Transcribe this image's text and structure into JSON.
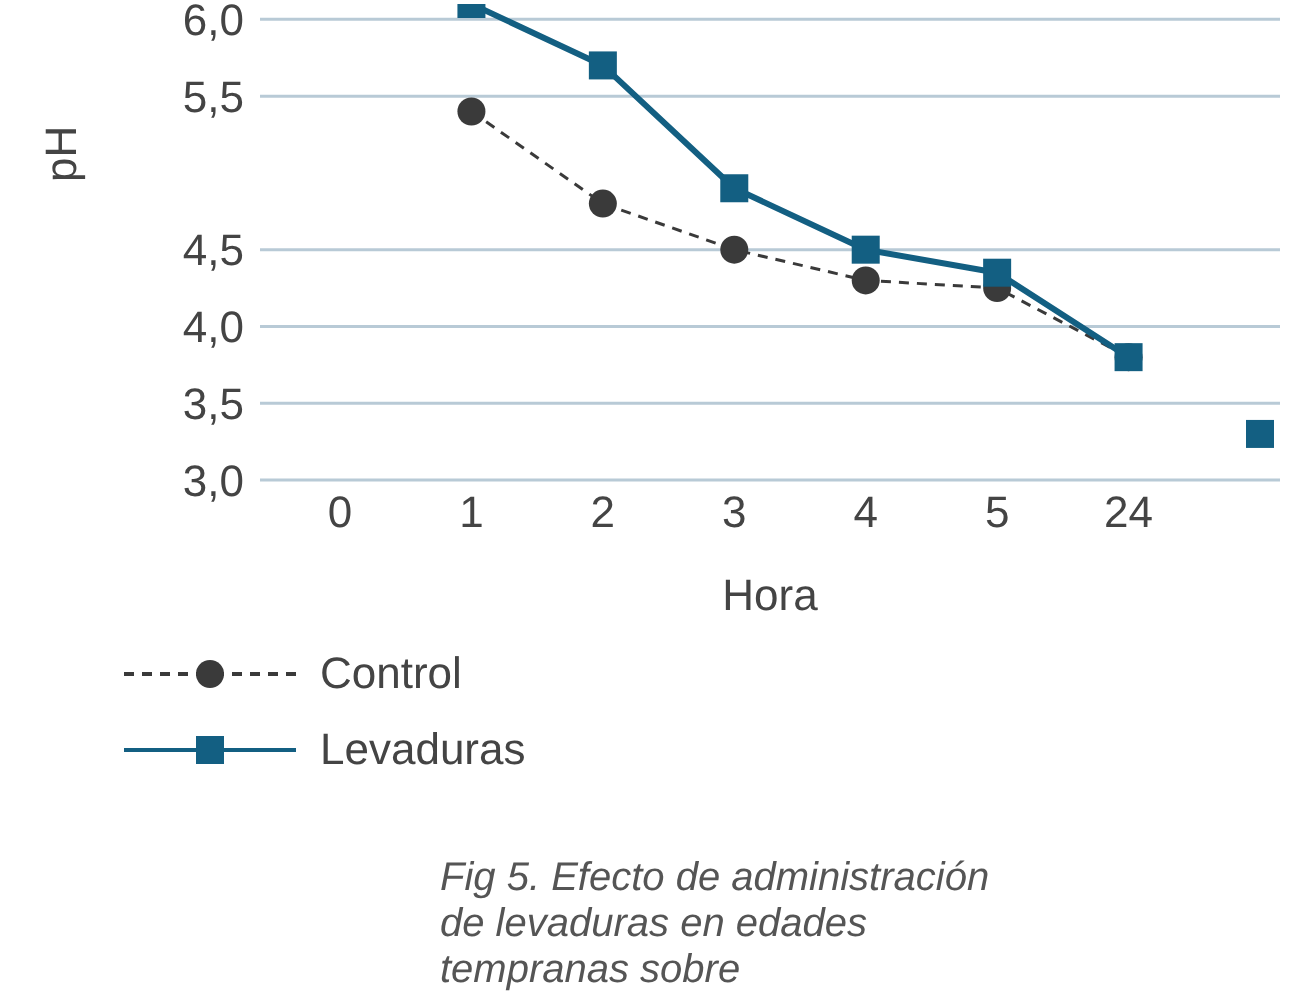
{
  "chart_data": {
    "type": "line",
    "xlabel": "Hora",
    "ylabel": "pH",
    "categories": [
      "0",
      "1",
      "2",
      "3",
      "4",
      "5",
      "24",
      null
    ],
    "series": [
      {
        "name": "Control",
        "color": "#3a3a3a",
        "line_style": "dashed",
        "marker": "circle",
        "values": [
          null,
          5.4,
          4.8,
          4.5,
          4.3,
          4.25,
          3.8,
          null
        ]
      },
      {
        "name": "Levaduras",
        "color": "#135f82",
        "line_style": "solid",
        "marker": "square",
        "values": [
          null,
          6.1,
          5.7,
          4.9,
          4.5,
          4.35,
          3.8,
          null
        ]
      },
      {
        "type": "scatter",
        "color": "#135f82",
        "marker": "square",
        "values": [
          null,
          null,
          null,
          null,
          null,
          null,
          null,
          3.3
        ]
      }
    ],
    "ylim": [
      3,
      6.1
    ],
    "yticks": [
      {
        "value": 3,
        "label": "3,0"
      },
      {
        "value": 3.5,
        "label": "3,5"
      },
      {
        "value": 4,
        "label": "4,0"
      },
      {
        "value": 4.5,
        "label": "4,5"
      },
      {
        "value": 5.5,
        "label": "5,5"
      },
      {
        "value": 6,
        "label": "6,0"
      }
    ],
    "grid": "y",
    "legend": "bottom left",
    "annotations": [
      "Fig 5. Efecto de administración de levaduras en edades tempranas sobre"
    ]
  }
}
